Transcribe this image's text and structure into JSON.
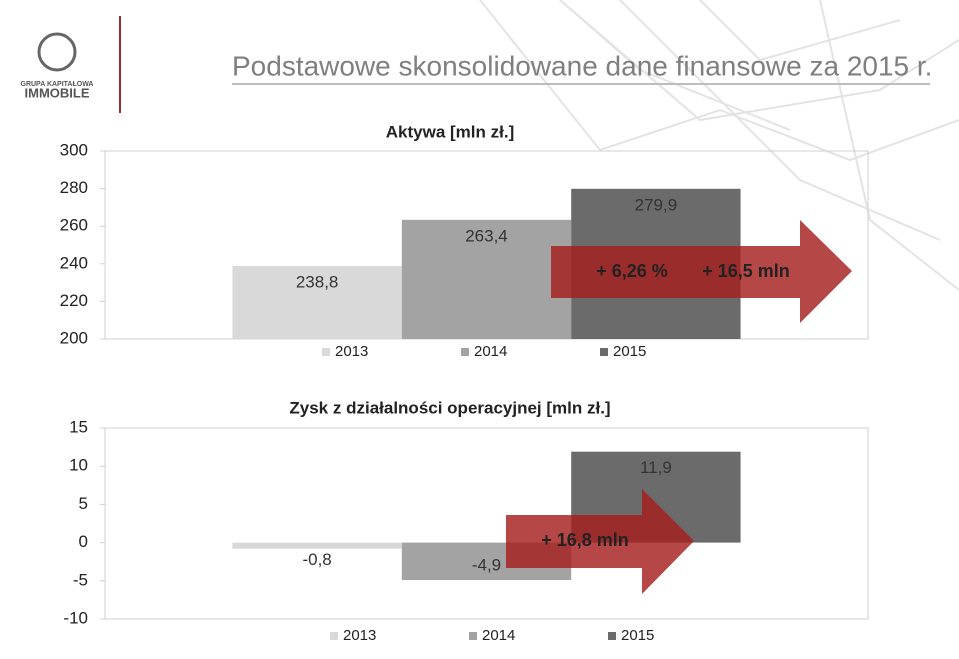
{
  "header": {
    "title": "Podstawowe skonsolidowane dane finansowe za 2015 r.",
    "logo_top": "GRUPA KAPITAŁOWA",
    "logo_bottom": "IMMOBILE"
  },
  "chart_data": [
    {
      "type": "bar",
      "title": "Aktywa [mln zł.]",
      "categories": [
        null
      ],
      "series": [
        {
          "name": "2013",
          "color": "#d9d9d9",
          "values": [
            238.8
          ],
          "value_labels": [
            "238,8"
          ]
        },
        {
          "name": "2014",
          "color": "#a3a3a3",
          "values": [
            263.4
          ],
          "value_labels": [
            "263,4"
          ]
        },
        {
          "name": "2015",
          "color": "#6b6b6b",
          "values": [
            279.9
          ],
          "value_labels": [
            "279,9"
          ]
        }
      ],
      "ylim": [
        200,
        300
      ],
      "yticks": [
        200,
        220,
        240,
        260,
        280,
        300
      ],
      "grid": false,
      "legend": "bottom",
      "annotations": [
        "+ 6,26 %",
        "+ 16,5 mln"
      ]
    },
    {
      "type": "bar",
      "title": "Zysk z działalności operacyjnej [mln zł.]",
      "categories": [
        null
      ],
      "series": [
        {
          "name": "2013",
          "color": "#d9d9d9",
          "values": [
            -0.8
          ],
          "value_labels": [
            "-0,8"
          ]
        },
        {
          "name": "2014",
          "color": "#a3a3a3",
          "values": [
            -4.9
          ],
          "value_labels": [
            "-4,9"
          ]
        },
        {
          "name": "2015",
          "color": "#6b6b6b",
          "values": [
            11.9
          ],
          "value_labels": [
            "11,9"
          ]
        }
      ],
      "ylim": [
        -10,
        15
      ],
      "yticks": [
        -10,
        -5,
        0,
        5,
        10,
        15
      ],
      "grid": false,
      "legend": "bottom",
      "annotations": [
        "+ 16,8 mln"
      ]
    }
  ]
}
